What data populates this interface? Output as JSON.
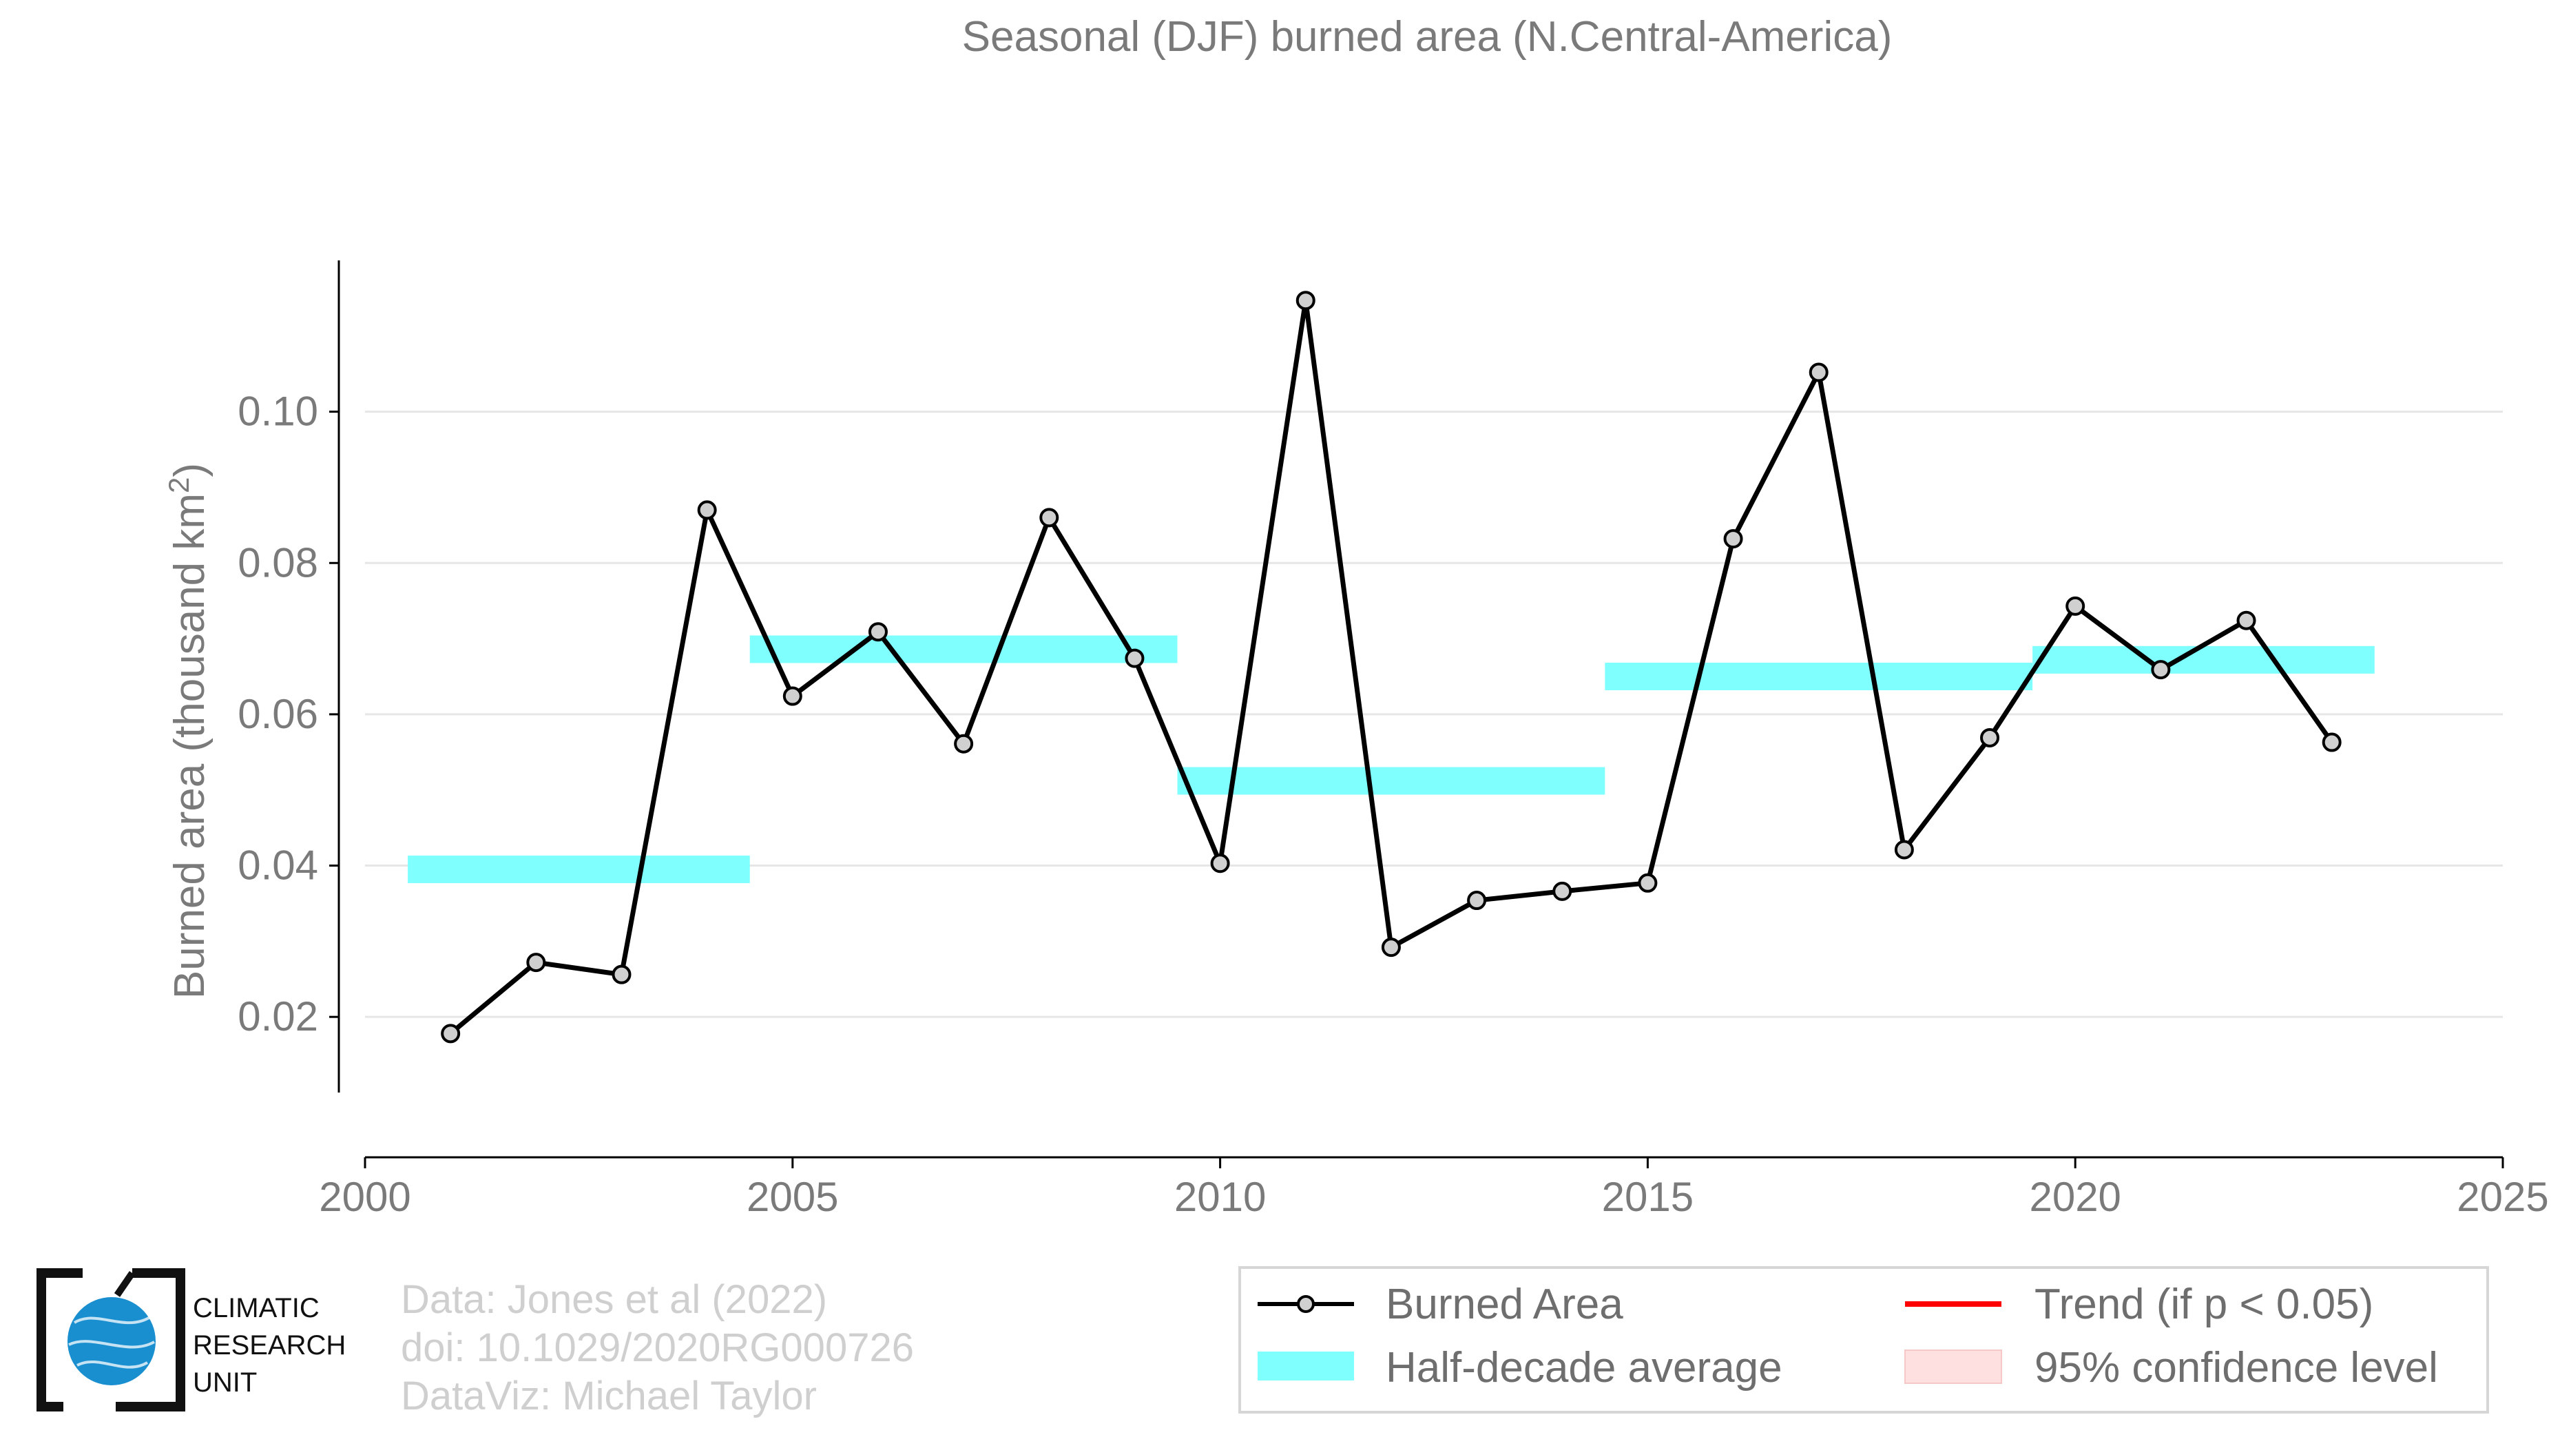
{
  "chart_data": {
    "type": "line",
    "title": "Seasonal (DJF) burned area (N.Central-America)",
    "ylabel_main": "Burned area (thousand km",
    "ylabel_sup": "2",
    "ylabel_end": ")",
    "xlim": [
      2000,
      2025
    ],
    "ylim": [
      0.01,
      0.12
    ],
    "x_ticks": [
      2000,
      2005,
      2010,
      2015,
      2020,
      2025
    ],
    "y_ticks": [
      0.02,
      0.04,
      0.06,
      0.08,
      0.1
    ],
    "y_tick_labels": [
      "0.02",
      "0.04",
      "0.06",
      "0.08",
      "0.10"
    ],
    "grid": "horizontal",
    "series": [
      {
        "name": "Burned Area",
        "color": "#000000",
        "marker_fill": "#d0d0d0",
        "x": [
          2001,
          2002,
          2003,
          2004,
          2005,
          2006,
          2007,
          2008,
          2009,
          2010,
          2011,
          2012,
          2013,
          2014,
          2015,
          2016,
          2017,
          2018,
          2019,
          2020,
          2021,
          2022,
          2023
        ],
        "values": [
          0.0178,
          0.0272,
          0.0256,
          0.087,
          0.0624,
          0.0709,
          0.0561,
          0.086,
          0.0674,
          0.0403,
          0.1147,
          0.0292,
          0.0354,
          0.0366,
          0.0377,
          0.0832,
          0.1052,
          0.0421,
          0.0569,
          0.0743,
          0.0659,
          0.0724,
          0.0563
        ]
      }
    ],
    "half_decade_average": {
      "name": "Half-decade average",
      "color": "#80ffff",
      "segments": [
        {
          "x0": 2000.5,
          "x1": 2004.5,
          "y": 0.0395
        },
        {
          "x0": 2004.5,
          "x1": 2009.5,
          "y": 0.0686
        },
        {
          "x0": 2009.5,
          "x1": 2014.5,
          "y": 0.0512
        },
        {
          "x0": 2014.5,
          "x1": 2019.5,
          "y": 0.065
        },
        {
          "x0": 2019.5,
          "x1": 2023.5,
          "y": 0.0672
        }
      ]
    },
    "legend": {
      "placement": "bottom-right",
      "items": [
        {
          "label": "Burned Area",
          "kind": "line-marker",
          "color": "#000000"
        },
        {
          "label": "Trend (if p < 0.05)",
          "kind": "line",
          "color": "#ff0000"
        },
        {
          "label": "Half-decade average",
          "kind": "band",
          "color": "#80ffff"
        },
        {
          "label": "95% confidence level",
          "kind": "patch",
          "color": "#ffe0e0"
        }
      ]
    }
  },
  "credits": {
    "line1": "Data: Jones et al (2022)",
    "line2": "doi: 10.1029/2020RG000726",
    "line3": "DataViz: Michael Taylor"
  },
  "logo": {
    "line1": "CLIMATIC",
    "line2": "RESEARCH",
    "line3": "UNIT",
    "color": "#1a8fd0"
  }
}
